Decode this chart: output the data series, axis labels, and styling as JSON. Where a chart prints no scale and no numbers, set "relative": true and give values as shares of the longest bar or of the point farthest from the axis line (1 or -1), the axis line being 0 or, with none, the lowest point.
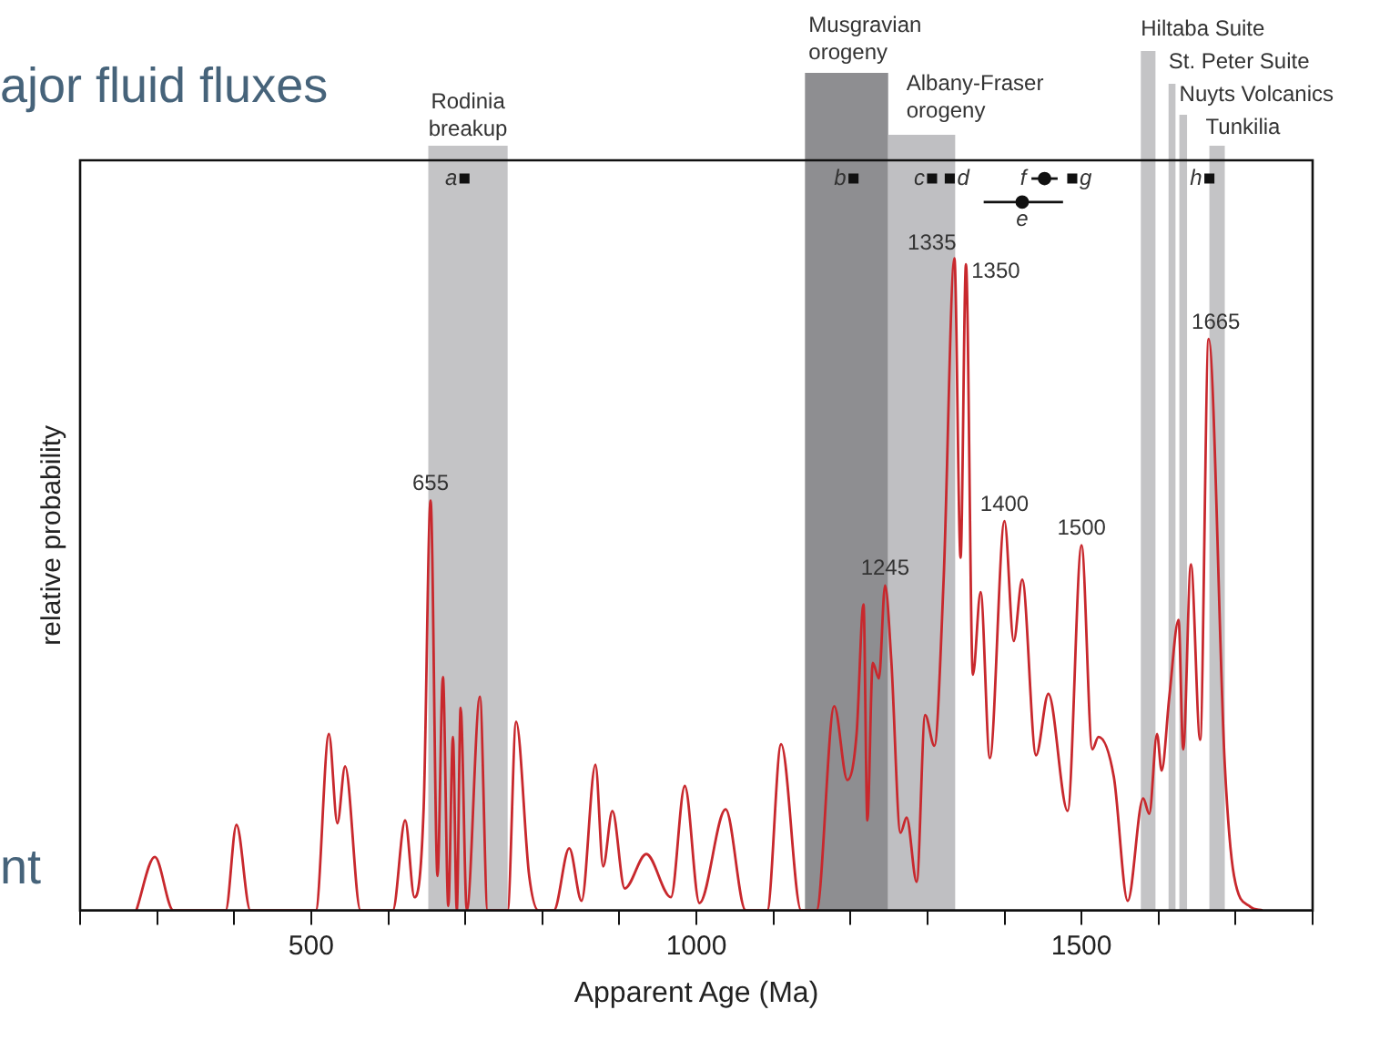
{
  "chart_data": {
    "type": "line",
    "xlabel": "Apparent Age (Ma)",
    "ylabel": "relative probability",
    "relative": true,
    "legend": false,
    "grid": false,
    "tick_labels": "x",
    "xlim": [
      200,
      1800
    ],
    "xticks": [
      {
        "value": 200,
        "label": null
      },
      {
        "value": 300,
        "label": null
      },
      {
        "value": 400,
        "label": null
      },
      500,
      {
        "value": 600,
        "label": null
      },
      {
        "value": 700,
        "label": null
      },
      {
        "value": 800,
        "label": null
      },
      {
        "value": 900,
        "label": null
      },
      1000,
      {
        "value": 1100,
        "label": null
      },
      {
        "value": 1200,
        "label": null
      },
      {
        "value": 1300,
        "label": null
      },
      {
        "value": 1400,
        "label": null
      },
      1500,
      {
        "value": 1600,
        "label": null
      },
      {
        "value": 1700,
        "label": null
      },
      {
        "value": 1800,
        "label": null
      }
    ],
    "series": [
      {
        "color": "#c8282d",
        "x": [
          273,
          297,
          321,
          389,
          403,
          421,
          506,
          523,
          534,
          544,
          564,
          606,
          622,
          634,
          646,
          655,
          664,
          671,
          678,
          684,
          689,
          694,
          702,
          719,
          729,
          755,
          766,
          783,
          795,
          815,
          835,
          851,
          869,
          879,
          891,
          907,
          935,
          967,
          985,
          1004,
          1038,
          1064,
          1092,
          1110,
          1136,
          1156,
          1179,
          1196,
          1208,
          1217,
          1222,
          1229,
          1237,
          1245,
          1253,
          1265,
          1273,
          1286,
          1297,
          1309,
          1321,
          1335,
          1343,
          1350,
          1359,
          1369,
          1381,
          1400,
          1412,
          1423,
          1441,
          1457,
          1482,
          1500,
          1514,
          1522,
          1542,
          1560,
          1580,
          1588,
          1598,
          1604,
          1614,
          1626,
          1632,
          1642,
          1654,
          1665,
          1686,
          1698,
          1719,
          1735
        ],
        "values": [
          0,
          0.073,
          0,
          0,
          0.117,
          0,
          0,
          0.241,
          0.119,
          0.197,
          0,
          0,
          0.123,
          0.018,
          0.14,
          0.56,
          0.047,
          0.319,
          0.006,
          0.237,
          0,
          0.277,
          0,
          0.292,
          0,
          0,
          0.258,
          0.047,
          0,
          0,
          0.085,
          0.013,
          0.199,
          0.06,
          0.136,
          0.03,
          0.077,
          0.018,
          0.17,
          0.01,
          0.138,
          0,
          0,
          0.227,
          0,
          0,
          0.279,
          0.178,
          0.241,
          0.418,
          0.123,
          0.338,
          0.317,
          0.444,
          0.343,
          0.106,
          0.127,
          0.039,
          0.267,
          0.225,
          0.452,
          0.891,
          0.482,
          0.883,
          0.322,
          0.435,
          0.208,
          0.532,
          0.368,
          0.452,
          0.212,
          0.296,
          0.136,
          0.499,
          0.22,
          0.237,
          0.182,
          0.013,
          0.153,
          0.132,
          0.241,
          0.191,
          0.292,
          0.397,
          0.22,
          0.473,
          0.233,
          0.781,
          0.199,
          0.047,
          0.005,
          0
        ]
      },
      {
        "type": "scatter",
        "color": "#111111",
        "marker": "square",
        "x": [
          699,
          1204,
          1306,
          1329,
          1488,
          1666
        ],
        "values": [
          1,
          1,
          1,
          1,
          1,
          1
        ]
      },
      {
        "type": "scatter",
        "color": "#111111",
        "marker": "circle",
        "x": [
          1423,
          1452
        ],
        "values": [
          0.968,
          1
        ],
        "xerrors": [
          [
            1373,
            1476
          ],
          [
            1435,
            1469
          ]
        ]
      }
    ],
    "bands": [
      {
        "axis": "x",
        "from": 652,
        "to": 755,
        "label": "Rodinia breakup",
        "color": "#c4c4c6"
      },
      {
        "axis": "x",
        "from": 1141,
        "to": 1249,
        "label": "Musgravian orogeny",
        "color": "#8e8e91"
      },
      {
        "axis": "x",
        "from": 1249,
        "to": 1336,
        "label": "Albany-Fraser orogeny",
        "color": "#bfbfc2"
      },
      {
        "axis": "x",
        "from": 1577,
        "to": 1596,
        "label": "Hiltaba Suite",
        "color": "#c4c4c6"
      },
      {
        "axis": "x",
        "from": 1613,
        "to": 1622,
        "label": "St. Peter Suite",
        "color": "#c4c4c6"
      },
      {
        "axis": "x",
        "from": 1627,
        "to": 1637,
        "label": "Nuyts Volcanics",
        "color": "#c4c4c6"
      },
      {
        "axis": "x",
        "from": 1666,
        "to": 1686,
        "label": "Tunkilia",
        "color": "#c4c4c6"
      }
    ],
    "annotations": [
      "ajor fluid fluxes",
      "nt",
      {
        "text": "655",
        "x": 655,
        "y": 0.56
      },
      {
        "text": "1245",
        "x": 1245,
        "y": 0.444
      },
      {
        "text": "1335",
        "x": 1335,
        "y": 0.891
      },
      {
        "text": "1350",
        "x": 1350,
        "y": 0.883
      },
      {
        "text": "1400",
        "x": 1400,
        "y": 0.532
      },
      {
        "text": "1500",
        "x": 1500,
        "y": 0.499
      },
      {
        "text": "1665",
        "x": 1665,
        "y": 0.781
      },
      {
        "text": "a",
        "x": 699,
        "y": 1
      },
      {
        "text": "b",
        "x": 1204,
        "y": 1
      },
      {
        "text": "c",
        "x": 1306,
        "y": 1
      },
      {
        "text": "d",
        "x": 1329,
        "y": 1
      },
      {
        "text": "e",
        "x": 1423,
        "y": 0.968
      },
      {
        "text": "f",
        "x": 1452,
        "y": 1
      },
      {
        "text": "g",
        "x": 1488,
        "y": 1
      },
      {
        "text": "h",
        "x": 1666,
        "y": 1
      }
    ]
  }
}
